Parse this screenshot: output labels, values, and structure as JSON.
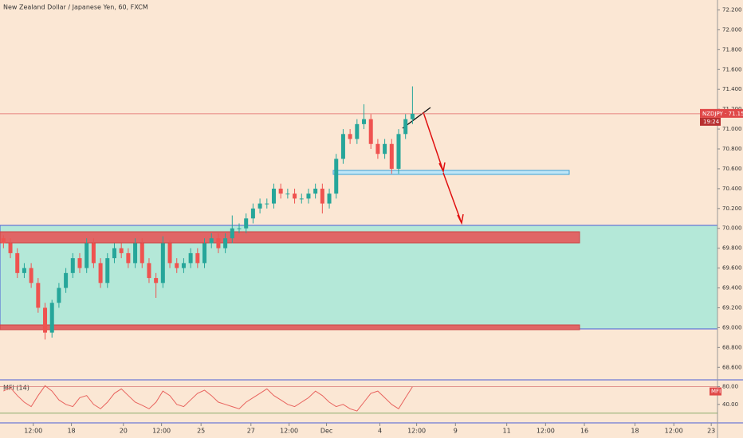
{
  "chart_data": [
    {
      "type": "candlestick",
      "title": "New Zealand Dollar / Japanese Yen, 60, FXCM",
      "price_label": "NZDJPY · 71.154",
      "countdown": "19:24",
      "up_color": "#26a69a",
      "down_color": "#ef5350",
      "open": [
        69.9,
        69.85,
        69.75,
        69.55,
        69.6,
        69.45,
        69.2,
        68.95,
        69.25,
        69.4,
        69.55,
        69.7,
        69.6,
        69.85,
        69.65,
        69.45,
        69.7,
        69.8,
        69.75,
        69.65,
        69.85,
        69.65,
        69.5,
        69.45,
        69.85,
        69.65,
        69.6,
        69.65,
        69.75,
        69.65,
        69.85,
        69.9,
        69.8,
        69.9,
        70.0,
        70.0,
        70.1,
        70.2,
        70.25,
        70.25,
        70.4,
        70.35,
        70.35,
        70.3,
        70.3,
        70.35,
        70.4,
        70.25,
        70.35,
        70.7,
        70.95,
        70.9,
        71.05,
        71.1,
        70.85,
        70.75,
        70.85,
        70.6,
        70.95,
        71.1
      ],
      "high": [
        69.93,
        69.9,
        69.8,
        69.65,
        69.65,
        69.5,
        69.25,
        69.28,
        69.45,
        69.6,
        69.75,
        69.75,
        69.9,
        69.9,
        69.7,
        69.75,
        69.85,
        69.85,
        69.8,
        69.9,
        69.9,
        69.7,
        69.55,
        69.92,
        69.88,
        69.7,
        69.7,
        69.8,
        69.8,
        69.9,
        69.95,
        69.95,
        69.95,
        70.13,
        70.05,
        70.15,
        70.25,
        70.3,
        70.3,
        70.45,
        70.45,
        70.4,
        70.4,
        70.35,
        70.4,
        70.45,
        70.45,
        70.4,
        70.75,
        71.0,
        71.0,
        71.1,
        71.25,
        71.15,
        70.9,
        70.9,
        70.9,
        71.0,
        71.15,
        71.43
      ],
      "low": [
        69.8,
        69.7,
        69.5,
        69.5,
        69.4,
        69.15,
        68.88,
        68.9,
        69.2,
        69.35,
        69.5,
        69.55,
        69.55,
        69.6,
        69.4,
        69.4,
        69.65,
        69.7,
        69.6,
        69.6,
        69.6,
        69.45,
        69.3,
        69.4,
        69.6,
        69.55,
        69.55,
        69.6,
        69.6,
        69.6,
        69.8,
        69.75,
        69.75,
        69.85,
        69.95,
        69.95,
        70.05,
        70.15,
        70.2,
        70.2,
        70.3,
        70.3,
        70.25,
        70.25,
        70.25,
        70.3,
        70.15,
        70.2,
        70.3,
        70.65,
        70.85,
        70.85,
        71.0,
        70.8,
        70.7,
        70.7,
        70.55,
        70.55,
        70.9,
        71.05
      ],
      "close": [
        69.85,
        69.75,
        69.55,
        69.6,
        69.45,
        69.2,
        68.95,
        69.25,
        69.4,
        69.55,
        69.7,
        69.6,
        69.85,
        69.65,
        69.45,
        69.7,
        69.8,
        69.75,
        69.65,
        69.85,
        69.65,
        69.5,
        69.45,
        69.85,
        69.65,
        69.6,
        69.65,
        69.75,
        69.65,
        69.85,
        69.9,
        69.8,
        69.9,
        70.0,
        70.0,
        70.1,
        70.2,
        70.25,
        70.25,
        70.4,
        70.35,
        70.35,
        70.3,
        70.3,
        70.35,
        70.4,
        70.25,
        70.35,
        70.7,
        70.95,
        70.9,
        71.05,
        71.1,
        70.85,
        70.75,
        70.85,
        70.6,
        70.95,
        71.1,
        71.154
      ],
      "xlim": [
        -0.5,
        103
      ],
      "xticks": [
        {
          "value": 4.3,
          "label": "12:00"
        },
        {
          "value": 9.8,
          "label": "18"
        },
        {
          "value": 17.3,
          "label": "20"
        },
        {
          "value": 22.8,
          "label": "12:00"
        },
        {
          "value": 28.5,
          "label": "25"
        },
        {
          "value": 35.7,
          "label": "27"
        },
        {
          "value": 41.2,
          "label": "12:00"
        },
        {
          "value": 46.6,
          "label": "Dec"
        },
        {
          "value": 54.3,
          "label": "4"
        },
        {
          "value": 59.6,
          "label": "12:00"
        },
        {
          "value": 65.2,
          "label": "9"
        },
        {
          "value": 72.6,
          "label": "11"
        },
        {
          "value": 78.2,
          "label": "12:00"
        },
        {
          "value": 83.8,
          "label": "16"
        },
        {
          "value": 91.1,
          "label": "18"
        },
        {
          "value": 96.7,
          "label": "12:00"
        },
        {
          "value": 102.1,
          "label": "23"
        }
      ],
      "ylim": [
        68.49,
        72.3
      ],
      "yticks": [
        {
          "value": 72.2,
          "label": "72.200"
        },
        {
          "value": 72.0,
          "label": "72.000"
        },
        {
          "value": 71.8,
          "label": "71.800"
        },
        {
          "value": 71.6,
          "label": "71.600"
        },
        {
          "value": 71.4,
          "label": "71.400"
        },
        {
          "value": 71.2,
          "label": "71.200"
        },
        {
          "value": 71.0,
          "label": "71.000"
        },
        {
          "value": 70.8,
          "label": "70.800"
        },
        {
          "value": 70.6,
          "label": "70.600"
        },
        {
          "value": 70.4,
          "label": "70.400"
        },
        {
          "value": 70.2,
          "label": "70.200"
        },
        {
          "value": 70.0,
          "label": "70.000"
        },
        {
          "value": 69.8,
          "label": "69.800"
        },
        {
          "value": 69.6,
          "label": "69.600"
        },
        {
          "value": 69.4,
          "label": "69.400"
        },
        {
          "value": 69.2,
          "label": "69.200"
        },
        {
          "value": 69.0,
          "label": "69.000"
        },
        {
          "value": 68.8,
          "label": "68.800"
        },
        {
          "value": 68.6,
          "label": "68.600"
        }
      ]
    },
    {
      "type": "line",
      "title": "MFI (14)",
      "tag": "MFI",
      "color": "#e8635e",
      "values": [
        70,
        78,
        60,
        45,
        35,
        60,
        82,
        70,
        50,
        40,
        35,
        55,
        60,
        40,
        30,
        45,
        65,
        75,
        60,
        45,
        38,
        30,
        45,
        70,
        60,
        40,
        35,
        50,
        65,
        72,
        60,
        45,
        40,
        35,
        30,
        45,
        55,
        65,
        75,
        60,
        50,
        40,
        35,
        45,
        55,
        70,
        60,
        45,
        35,
        40,
        30,
        25,
        45,
        65,
        70,
        55,
        40,
        30,
        55,
        80
      ],
      "levels": [
        80,
        20
      ],
      "ylim": [
        0,
        90
      ],
      "yticks": [
        {
          "value": 80,
          "label": "80.00"
        },
        {
          "value": 40,
          "label": "40.00"
        }
      ]
    }
  ]
}
